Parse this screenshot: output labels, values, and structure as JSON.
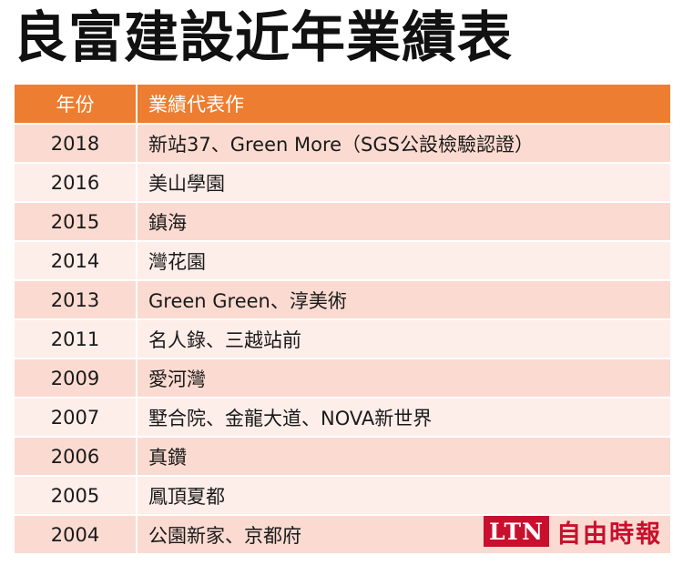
{
  "title": "良富建設近年業績表",
  "table": {
    "headers": [
      "年份",
      "業績代表作"
    ],
    "rows": [
      {
        "year": "2018",
        "works": "新站37、Green More（SGS公設檢驗認證）"
      },
      {
        "year": "2016",
        "works": "美山學園"
      },
      {
        "year": "2015",
        "works": "鎮海"
      },
      {
        "year": "2014",
        "works": "灣花園"
      },
      {
        "year": "2013",
        "works": "Green Green、淳美術"
      },
      {
        "year": "2011",
        "works": "名人錄、三越站前"
      },
      {
        "year": "2009",
        "works": "愛河灣"
      },
      {
        "year": "2007",
        "works": "墅合院、金龍大道、NOVA新世界"
      },
      {
        "year": "2006",
        "works": "真鑽"
      },
      {
        "year": "2005",
        "works": "鳳頂夏都"
      },
      {
        "year": "2004",
        "works": "公園新家、京都府"
      }
    ]
  },
  "watermark": {
    "box": "LTN",
    "text": "自由時報"
  },
  "colors": {
    "header_bg": "#ed7d31",
    "row_odd": "#fbdbd1",
    "row_even": "#fdeeea",
    "logo_red": "#c8102e"
  }
}
